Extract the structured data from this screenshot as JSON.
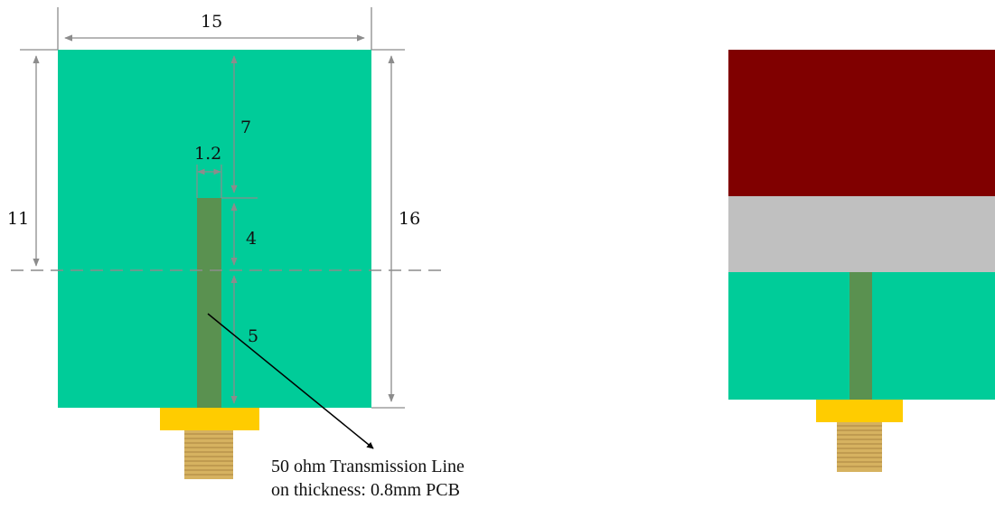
{
  "colors": {
    "board": "#00cc99",
    "trace": "#5a9150",
    "connector_flange": "#ffcc00",
    "connector_thread": "#d6b260",
    "patch": "#800000",
    "gap": "#c0c0c0",
    "dimension_line": "#8c8c8c"
  },
  "dimensions": {
    "board_width": "15",
    "trace_width": "1.2",
    "top_section": "7",
    "trace_upper": "4",
    "trace_lower": "5",
    "left_height": "11",
    "right_height": "16"
  },
  "annotation": {
    "line1": "50 ohm Transmission Line",
    "line2": "on thickness: 0.8mm PCB"
  }
}
